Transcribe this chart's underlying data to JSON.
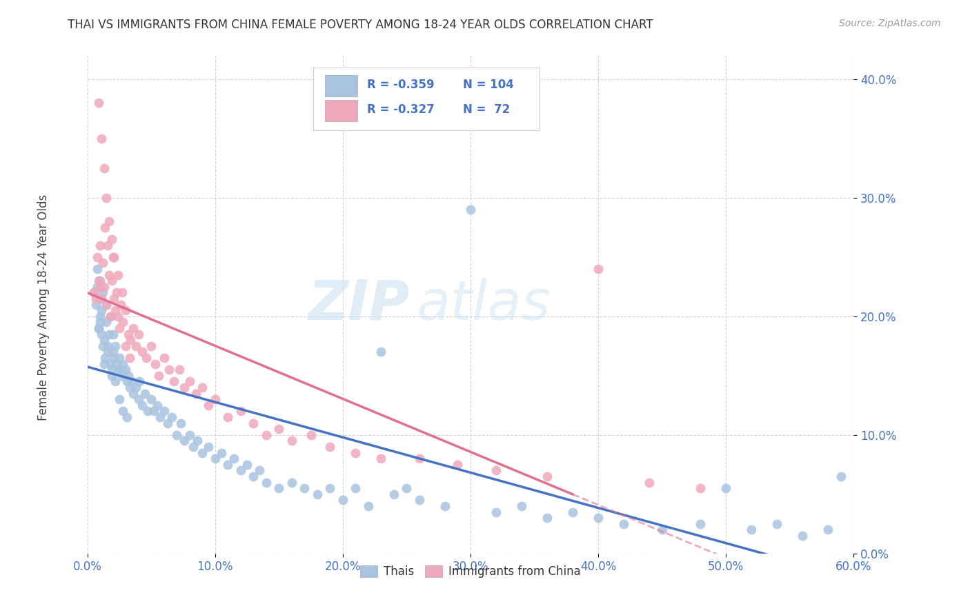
{
  "title": "THAI VS IMMIGRANTS FROM CHINA FEMALE POVERTY AMONG 18-24 YEAR OLDS CORRELATION CHART",
  "source": "Source: ZipAtlas.com",
  "ylabel": "Female Poverty Among 18-24 Year Olds",
  "r_thai": -0.359,
  "n_thai": 104,
  "r_china": -0.327,
  "n_china": 72,
  "blue_color": "#4472c4",
  "pink_color": "#e07090",
  "scatter_blue": "#a8c4e0",
  "scatter_pink": "#f0a8bc",
  "watermark_zip": "ZIP",
  "watermark_atlas": "atlas",
  "xlim": [
    0.0,
    0.6
  ],
  "ylim": [
    0.0,
    0.42
  ],
  "xticks": [
    0.0,
    0.1,
    0.2,
    0.3,
    0.4,
    0.5,
    0.6
  ],
  "yticks": [
    0.0,
    0.1,
    0.2,
    0.3,
    0.4
  ],
  "thai_x": [
    0.005,
    0.007,
    0.008,
    0.009,
    0.01,
    0.01,
    0.01,
    0.01,
    0.011,
    0.012,
    0.012,
    0.013,
    0.014,
    0.015,
    0.015,
    0.016,
    0.017,
    0.018,
    0.018,
    0.019,
    0.02,
    0.02,
    0.021,
    0.022,
    0.023,
    0.024,
    0.025,
    0.026,
    0.027,
    0.028,
    0.03,
    0.031,
    0.032,
    0.033,
    0.035,
    0.036,
    0.038,
    0.04,
    0.041,
    0.043,
    0.045,
    0.047,
    0.05,
    0.052,
    0.055,
    0.057,
    0.06,
    0.063,
    0.066,
    0.07,
    0.073,
    0.076,
    0.08,
    0.083,
    0.086,
    0.09,
    0.095,
    0.1,
    0.105,
    0.11,
    0.115,
    0.12,
    0.125,
    0.13,
    0.135,
    0.14,
    0.15,
    0.16,
    0.17,
    0.18,
    0.19,
    0.2,
    0.21,
    0.22,
    0.23,
    0.24,
    0.25,
    0.26,
    0.28,
    0.3,
    0.32,
    0.34,
    0.36,
    0.38,
    0.4,
    0.42,
    0.45,
    0.48,
    0.5,
    0.52,
    0.54,
    0.56,
    0.58,
    0.59,
    0.008,
    0.009,
    0.011,
    0.013,
    0.016,
    0.019,
    0.022,
    0.025,
    0.028,
    0.031
  ],
  "thai_y": [
    0.22,
    0.21,
    0.225,
    0.19,
    0.215,
    0.2,
    0.23,
    0.195,
    0.185,
    0.175,
    0.22,
    0.18,
    0.165,
    0.21,
    0.195,
    0.175,
    0.185,
    0.16,
    0.2,
    0.155,
    0.17,
    0.185,
    0.165,
    0.175,
    0.16,
    0.155,
    0.165,
    0.155,
    0.15,
    0.16,
    0.155,
    0.145,
    0.15,
    0.14,
    0.145,
    0.135,
    0.14,
    0.13,
    0.145,
    0.125,
    0.135,
    0.12,
    0.13,
    0.12,
    0.125,
    0.115,
    0.12,
    0.11,
    0.115,
    0.1,
    0.11,
    0.095,
    0.1,
    0.09,
    0.095,
    0.085,
    0.09,
    0.08,
    0.085,
    0.075,
    0.08,
    0.07,
    0.075,
    0.065,
    0.07,
    0.06,
    0.055,
    0.06,
    0.055,
    0.05,
    0.055,
    0.045,
    0.055,
    0.04,
    0.17,
    0.05,
    0.055,
    0.045,
    0.04,
    0.29,
    0.035,
    0.04,
    0.03,
    0.035,
    0.03,
    0.025,
    0.02,
    0.025,
    0.055,
    0.02,
    0.025,
    0.015,
    0.02,
    0.065,
    0.24,
    0.19,
    0.205,
    0.16,
    0.17,
    0.15,
    0.145,
    0.13,
    0.12,
    0.115
  ],
  "china_x": [
    0.005,
    0.007,
    0.008,
    0.009,
    0.01,
    0.01,
    0.011,
    0.012,
    0.013,
    0.014,
    0.015,
    0.016,
    0.017,
    0.018,
    0.019,
    0.02,
    0.021,
    0.022,
    0.023,
    0.024,
    0.025,
    0.026,
    0.028,
    0.03,
    0.032,
    0.034,
    0.036,
    0.038,
    0.04,
    0.043,
    0.046,
    0.05,
    0.053,
    0.056,
    0.06,
    0.064,
    0.068,
    0.072,
    0.076,
    0.08,
    0.085,
    0.09,
    0.095,
    0.1,
    0.11,
    0.12,
    0.13,
    0.14,
    0.15,
    0.16,
    0.175,
    0.19,
    0.21,
    0.23,
    0.26,
    0.29,
    0.32,
    0.36,
    0.4,
    0.44,
    0.48,
    0.009,
    0.011,
    0.013,
    0.015,
    0.017,
    0.019,
    0.021,
    0.024,
    0.027,
    0.03,
    0.033
  ],
  "china_y": [
    0.22,
    0.215,
    0.25,
    0.23,
    0.26,
    0.225,
    0.215,
    0.245,
    0.225,
    0.275,
    0.21,
    0.26,
    0.235,
    0.2,
    0.23,
    0.25,
    0.215,
    0.205,
    0.22,
    0.2,
    0.19,
    0.21,
    0.195,
    0.205,
    0.185,
    0.18,
    0.19,
    0.175,
    0.185,
    0.17,
    0.165,
    0.175,
    0.16,
    0.15,
    0.165,
    0.155,
    0.145,
    0.155,
    0.14,
    0.145,
    0.135,
    0.14,
    0.125,
    0.13,
    0.115,
    0.12,
    0.11,
    0.1,
    0.105,
    0.095,
    0.1,
    0.09,
    0.085,
    0.08,
    0.08,
    0.075,
    0.07,
    0.065,
    0.24,
    0.06,
    0.055,
    0.38,
    0.35,
    0.325,
    0.3,
    0.28,
    0.265,
    0.25,
    0.235,
    0.22,
    0.175,
    0.165
  ]
}
